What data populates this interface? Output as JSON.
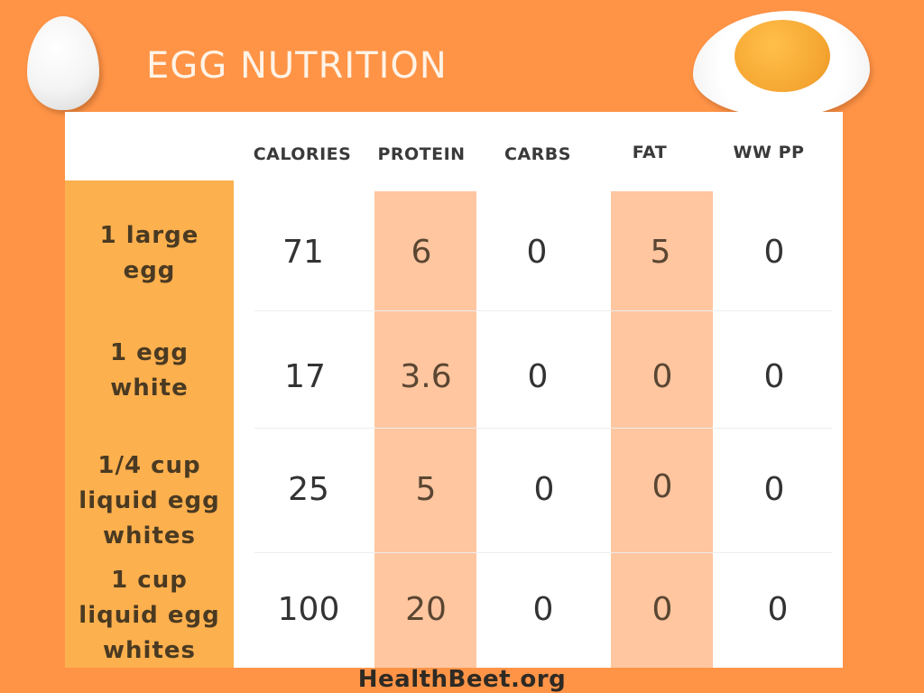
{
  "title": "EGG NUTRITION",
  "columns": [
    "CALORIES",
    "PROTEIN",
    "CARBS",
    "FAT",
    "WW PP"
  ],
  "rows": [
    {
      "label_lines": [
        "1 large",
        "egg"
      ],
      "values": [
        "71",
        "6",
        "0",
        "5",
        "0"
      ]
    },
    {
      "label_lines": [
        "1 egg",
        "white"
      ],
      "values": [
        "17",
        "3.6",
        "0",
        "0",
        "0"
      ]
    },
    {
      "label_lines": [
        "1/4 cup",
        "liquid egg",
        "whites"
      ],
      "values": [
        "25",
        "5",
        "0",
        "0",
        "0"
      ]
    },
    {
      "label_lines": [
        "1 cup",
        "liquid egg",
        "whites"
      ],
      "values": [
        "100",
        "20",
        "0",
        "0",
        "0"
      ]
    }
  ],
  "footer": "HealthBeet.org",
  "colors": {
    "background": "#FF9447",
    "label_column": "#FDB04E",
    "highlight_column": "#FFC6A0",
    "card": "#FFFFFF"
  },
  "icons": [
    "whole-egg-icon",
    "fried-egg-icon"
  ]
}
